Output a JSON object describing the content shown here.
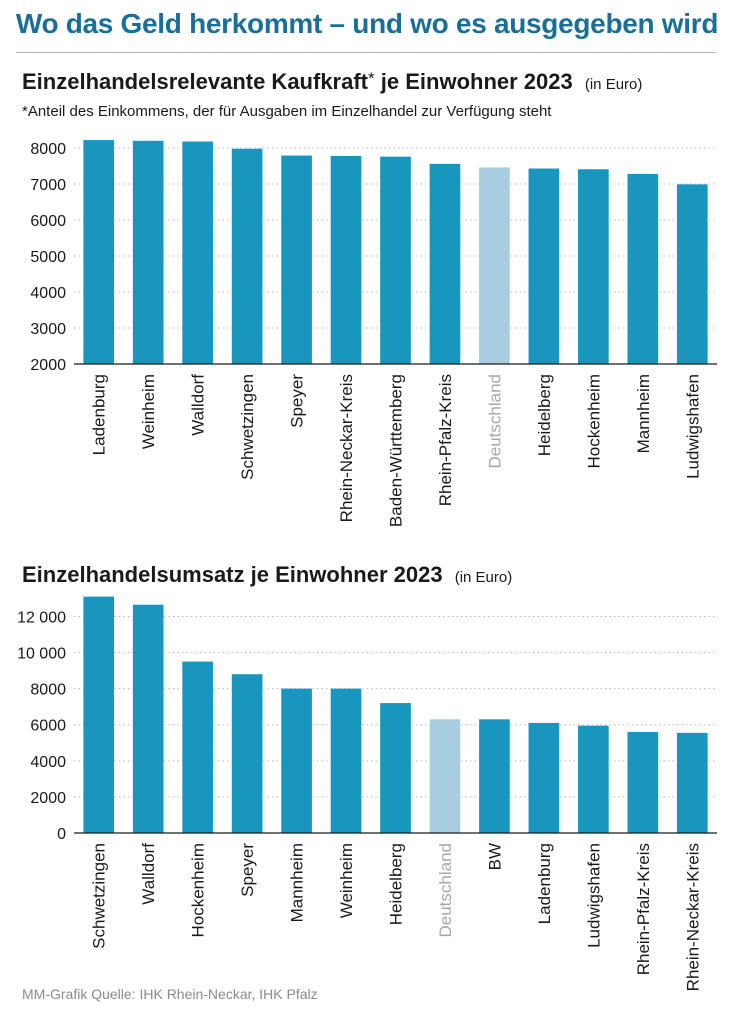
{
  "headline": "Wo das Geld herkommt – und wo es ausgegeben wird",
  "source": "MM-Grafik Quelle: IHK Rhein-Neckar, IHK Pfalz",
  "colors": {
    "bar": "#1896bd",
    "highlight": "#a9cde0",
    "headline": "#1a6f98",
    "highlight_label": "#a7a7a7"
  },
  "chart_data": [
    {
      "type": "bar",
      "title": "Einzelhandelsrelevante Kaufkraft",
      "title_marker": "*",
      "title_suffix": "je Einwohner 2023",
      "unit": "(in Euro)",
      "footnote": "*Anteil des Einkommens, der für Ausgaben im Einzelhandel zur Verfügung steht",
      "categories": [
        "Ladenburg",
        "Weinheim",
        "Walldorf",
        "Schwetzingen",
        "Speyer",
        "Rhein-Neckar-Kreis",
        "Baden-Württemberg",
        "Rhein-Pfalz-Kreis",
        "Deutschland",
        "Heidelberg",
        "Hockenheim",
        "Mannheim",
        "Ludwigshafen"
      ],
      "values": [
        8220,
        8200,
        8180,
        7980,
        7790,
        7780,
        7760,
        7560,
        7460,
        7430,
        7410,
        7280,
        6990
      ],
      "highlight": "Deutschland",
      "ylim": [
        2000,
        8500
      ],
      "yticks": [
        "2000",
        "3000",
        "4000",
        "5000",
        "6000",
        "7000",
        "8000"
      ],
      "grid": "dotted horizontal"
    },
    {
      "type": "bar",
      "title": "Einzelhandelsumsatz je Einwohner 2023",
      "unit": "(in Euro)",
      "categories": [
        "Schwetzingen",
        "Walldorf",
        "Hockenheim",
        "Speyer",
        "Mannheim",
        "Weinheim",
        "Heidelberg",
        "Deutschland",
        "BW",
        "Ladenburg",
        "Ludwigshafen",
        "Rhein-Pfalz-Kreis",
        "Rhein-Neckar-Kreis"
      ],
      "values": [
        13100,
        12650,
        9500,
        8800,
        8000,
        8000,
        7200,
        6300,
        6300,
        6100,
        5950,
        5600,
        5550
      ],
      "highlight": "Deutschland",
      "ylim": [
        0,
        13300
      ],
      "yticks": [
        "0",
        "2000",
        "4000",
        "6000",
        "8000",
        "10 000",
        "12 000"
      ],
      "grid": "dotted horizontal"
    }
  ]
}
